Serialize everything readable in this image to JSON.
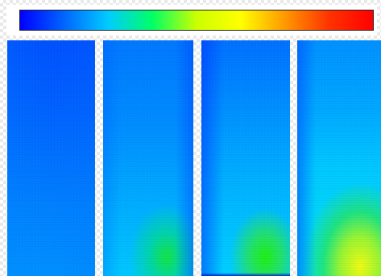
{
  "colorbar": {
    "colors": [
      "#0000ff",
      "#0066ff",
      "#00ccff",
      "#00ff66",
      "#ccff00",
      "#ffff00",
      "#ff9900",
      "#ff3300",
      "#ff0000"
    ],
    "orientation": "horizontal"
  },
  "panels": [
    {
      "id": 1,
      "dominant_colors": [
        "#0050ff",
        "#0090ff"
      ]
    },
    {
      "id": 2,
      "dominant_colors": [
        "#0078ff",
        "#00c8ff",
        "#14e63c"
      ]
    },
    {
      "id": 3,
      "dominant_colors": [
        "#0070ff",
        "#00d0ff",
        "#1ef014"
      ]
    },
    {
      "id": 4,
      "dominant_colors": [
        "#0090ff",
        "#00e6f0",
        "#f0fa14"
      ]
    }
  ]
}
